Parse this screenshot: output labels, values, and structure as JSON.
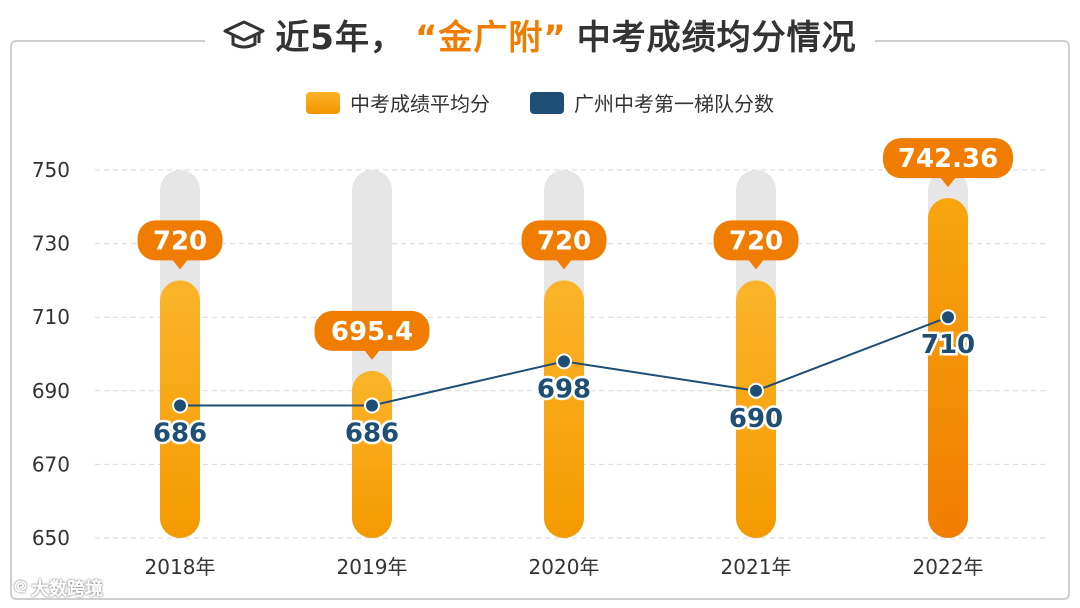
{
  "header": {
    "title_prefix": "近5年，",
    "title_highlight": "“金广附”",
    "title_suffix": "中考成绩均分情况",
    "icon": "graduation-cap-icon"
  },
  "watermark": {
    "text": "大数跨境"
  },
  "colors": {
    "bar_orange": "#f9a20e",
    "bar_orange_dark": "#f07d00",
    "line_navy": "#1f4e74",
    "track_gray": "#e6e6e6",
    "grid": "#d9d9d9",
    "text": "#333333"
  },
  "chart_data": {
    "type": "bar",
    "categories": [
      "2018年",
      "2019年",
      "2020年",
      "2021年",
      "2022年"
    ],
    "series": [
      {
        "name": "中考成绩平均分",
        "type": "bar",
        "values": [
          720,
          695.4,
          720,
          720,
          742.36
        ],
        "labels": [
          "720",
          "695.4",
          "720",
          "720",
          "742.36"
        ]
      },
      {
        "name": "广州中考第一梯队分数",
        "type": "line",
        "values": [
          686,
          686,
          698,
          690,
          710
        ],
        "labels": [
          "686",
          "686",
          "698",
          "690",
          "710"
        ]
      }
    ],
    "yticks": [
      "650",
      "670",
      "690",
      "710",
      "730",
      "750"
    ],
    "ylim": [
      650,
      750
    ],
    "grid": true,
    "legend": "top-center",
    "title": "近5年，“金广附”中考成绩均分情况"
  }
}
